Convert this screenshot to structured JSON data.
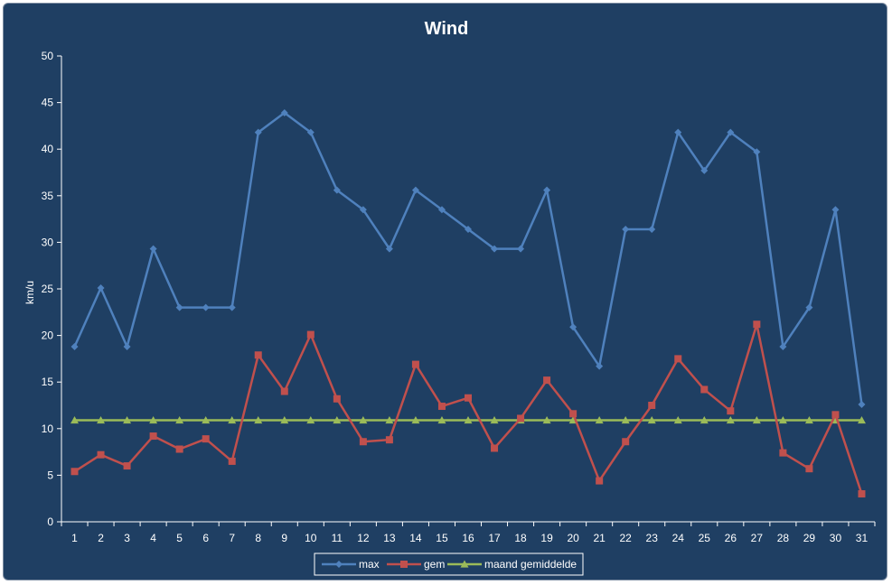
{
  "chart_data": {
    "type": "line",
    "title": "Wind",
    "xlabel": "",
    "ylabel": "km/u",
    "ylim": [
      0,
      50
    ],
    "yticks": [
      0,
      5,
      10,
      15,
      20,
      25,
      30,
      35,
      40,
      45,
      50
    ],
    "categories": [
      "1",
      "2",
      "3",
      "4",
      "5",
      "6",
      "7",
      "8",
      "9",
      "10",
      "11",
      "12",
      "13",
      "14",
      "15",
      "16",
      "17",
      "18",
      "19",
      "20",
      "21",
      "22",
      "23",
      "24",
      "25",
      "26",
      "27",
      "28",
      "29",
      "30",
      "31"
    ],
    "grid": false,
    "legend_position": "bottom",
    "series": [
      {
        "name": "max",
        "color": "#4f81bd",
        "marker": "diamond",
        "values": [
          18.8,
          25.1,
          18.8,
          29.3,
          23.0,
          23.0,
          23.0,
          41.8,
          43.9,
          41.8,
          35.6,
          33.5,
          29.3,
          35.6,
          33.5,
          31.4,
          29.3,
          29.3,
          35.6,
          20.9,
          16.7,
          31.4,
          31.4,
          41.8,
          37.7,
          41.8,
          39.7,
          18.8,
          23.0,
          33.5,
          12.6
        ]
      },
      {
        "name": "gem",
        "color": "#c0504d",
        "marker": "square",
        "values": [
          5.4,
          7.2,
          6.0,
          9.2,
          7.8,
          8.9,
          6.5,
          17.9,
          14.0,
          20.1,
          13.2,
          8.6,
          8.8,
          16.9,
          12.4,
          13.3,
          7.9,
          11.1,
          15.2,
          11.6,
          4.4,
          8.6,
          12.5,
          17.5,
          14.2,
          11.9,
          21.2,
          7.4,
          5.7,
          11.5,
          3.0
        ]
      },
      {
        "name": "maand gemiddelde",
        "color": "#9bbb59",
        "marker": "triangle",
        "values": [
          10.9,
          10.9,
          10.9,
          10.9,
          10.9,
          10.9,
          10.9,
          10.9,
          10.9,
          10.9,
          10.9,
          10.9,
          10.9,
          10.9,
          10.9,
          10.9,
          10.9,
          10.9,
          10.9,
          10.9,
          10.9,
          10.9,
          10.9,
          10.9,
          10.9,
          10.9,
          10.9,
          10.9,
          10.9,
          10.9,
          10.9
        ]
      }
    ]
  },
  "colors": {
    "background": "#1f3f63",
    "axis": "#ffffff",
    "text": "#ffffff"
  }
}
